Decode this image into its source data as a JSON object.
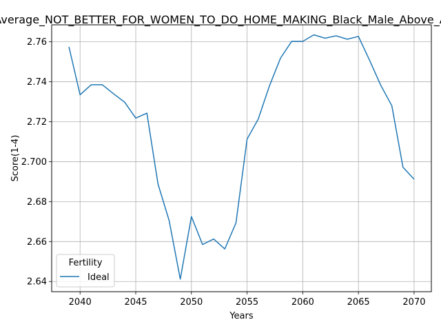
{
  "chart_data": {
    "type": "line",
    "title": "Average_NOT_BETTER_FOR_WOMEN_TO_DO_HOME_MAKING_Black_Male_Above_A",
    "xlabel": "Years",
    "ylabel": "Score(1-4)",
    "xlim": [
      2037.45,
      2071.55
    ],
    "ylim": [
      2.6349,
      2.7685
    ],
    "xticks": [
      2040,
      2045,
      2050,
      2055,
      2060,
      2065,
      2070
    ],
    "xtick_labels": [
      "2040",
      "2045",
      "2050",
      "2055",
      "2060",
      "2065",
      "2070"
    ],
    "yticks": [
      2.64,
      2.66,
      2.68,
      2.7,
      2.72,
      2.74,
      2.76
    ],
    "ytick_labels": [
      "2.64",
      "2.66",
      "2.68",
      "2.700",
      "2.72",
      "2.74",
      "2.76"
    ],
    "grid": true,
    "legend": {
      "title": "Fertility",
      "location": "lower-left"
    },
    "series": [
      {
        "name": "Ideal",
        "color": "#1f77b4",
        "x": [
          2039,
          2040,
          2041,
          2042,
          2043,
          2044,
          2045,
          2046,
          2047,
          2048,
          2049,
          2050,
          2051,
          2052,
          2053,
          2054,
          2055,
          2056,
          2057,
          2058,
          2059,
          2060,
          2061,
          2062,
          2063,
          2064,
          2065,
          2066,
          2067,
          2068,
          2069,
          2070
        ],
        "values": [
          2.7575,
          2.7335,
          2.7385,
          2.7385,
          2.734,
          2.7298,
          2.7218,
          2.7243,
          2.6888,
          2.6705,
          2.6412,
          2.6725,
          2.6585,
          2.6613,
          2.6563,
          2.6693,
          2.7113,
          2.7213,
          2.7378,
          2.7518,
          2.7602,
          2.7602,
          2.7635,
          2.7618,
          2.763,
          2.7613,
          2.7627,
          2.7508,
          2.7383,
          2.728,
          2.6972,
          2.6912
        ]
      }
    ]
  }
}
